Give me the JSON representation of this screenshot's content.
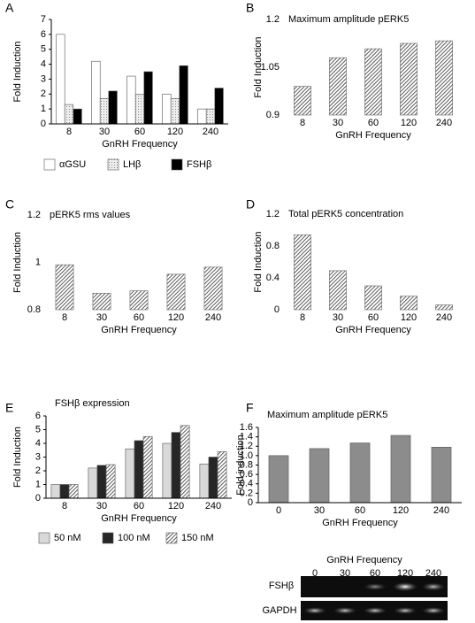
{
  "chart_data": [
    {
      "panel": "A",
      "type": "bar",
      "ylabel": "Fold Induction",
      "xlabel": "GnRH Frequency",
      "categories": [
        "8",
        "30",
        "60",
        "120",
        "240"
      ],
      "ylim": [
        0,
        7
      ],
      "yticks": [
        0,
        1,
        2,
        3,
        4,
        5,
        6,
        7
      ],
      "axes": true,
      "legend": "bottom",
      "series": [
        {
          "name": "αGSU",
          "color": "#ffffff",
          "pattern": "none",
          "values": [
            6.0,
            4.2,
            3.2,
            2.0,
            1.0
          ]
        },
        {
          "name": "LHβ",
          "color": "#d8d8d8",
          "pattern": "dots",
          "values": [
            1.3,
            1.7,
            2.0,
            1.7,
            1.0
          ]
        },
        {
          "name": "FSHβ",
          "color": "#000000",
          "pattern": "none",
          "values": [
            1.0,
            2.2,
            3.5,
            3.9,
            2.4
          ]
        }
      ]
    },
    {
      "panel": "B",
      "type": "bar",
      "title": "Maximum amplitude pERK5",
      "ylabel": "Fold Induction",
      "xlabel": "GnRH Frequency",
      "categories": [
        "8",
        "30",
        "60",
        "120",
        "240"
      ],
      "ylim": [
        0.9,
        1.2
      ],
      "yticks": [
        0.9,
        1.05,
        1.2
      ],
      "axes": false,
      "series": [
        {
          "color": "#8c8c8c",
          "pattern": "hatch",
          "values": [
            0.99,
            1.08,
            1.108,
            1.125,
            1.133
          ]
        }
      ]
    },
    {
      "panel": "C",
      "type": "bar",
      "title": "pERK5 rms values",
      "ylabel": "Fold Induction",
      "xlabel": "GnRH Frequency",
      "categories": [
        "8",
        "30",
        "60",
        "120",
        "240"
      ],
      "ylim": [
        0.8,
        1.2
      ],
      "yticks": [
        0.8,
        1,
        1.2
      ],
      "axes": false,
      "series": [
        {
          "color": "#8c8c8c",
          "pattern": "hatch",
          "values": [
            0.99,
            0.87,
            0.88,
            0.95,
            0.98
          ]
        }
      ]
    },
    {
      "panel": "D",
      "type": "bar",
      "title": "Total pERK5 concentration",
      "ylabel": "Fold Induction",
      "xlabel": "GnRH Frequency",
      "categories": [
        "8",
        "30",
        "60",
        "120",
        "240"
      ],
      "ylim": [
        0,
        1.2
      ],
      "yticks": [
        0,
        0.4,
        0.8,
        1.2
      ],
      "axes": false,
      "series": [
        {
          "color": "#8c8c8c",
          "pattern": "hatch",
          "values": [
            0.94,
            0.49,
            0.3,
            0.17,
            0.06
          ]
        }
      ]
    },
    {
      "panel": "E",
      "type": "bar",
      "title": "FSHβ expression",
      "ylabel": "Fold Induction",
      "xlabel": "GnRH Frequency",
      "categories": [
        "8",
        "30",
        "60",
        "120",
        "240"
      ],
      "ylim": [
        0,
        6
      ],
      "yticks": [
        0,
        1,
        2,
        3,
        4,
        5,
        6
      ],
      "axes": true,
      "legend": "bottom",
      "series": [
        {
          "name": "50 nM",
          "color": "#d9d9d9",
          "pattern": "none",
          "values": [
            1.0,
            2.2,
            3.6,
            4.0,
            2.5
          ]
        },
        {
          "name": "100 nM",
          "color": "#262626",
          "pattern": "none",
          "values": [
            1.0,
            2.4,
            4.2,
            4.8,
            3.0
          ]
        },
        {
          "name": "150 nM",
          "color": "#ffffff",
          "pattern": "hatch",
          "values": [
            1.0,
            2.45,
            4.5,
            5.3,
            3.4
          ]
        }
      ]
    },
    {
      "panel": "F",
      "type": "bar",
      "title": "Maximum amplitude pERK5",
      "ylabel": "Fold induction",
      "xlabel": "GnRH Frequency",
      "categories": [
        "0",
        "30",
        "60",
        "120",
        "240"
      ],
      "ylim": [
        0,
        1.6
      ],
      "yticks": [
        0,
        {
          "value": 0.2,
          "label": "0.2"
        },
        {
          "value": 0.4,
          "label": "0.4"
        },
        {
          "value": 0.6,
          "label": "0.6"
        },
        {
          "value": 0.8,
          "label": "0.8"
        },
        {
          "value": 1,
          "label": "1.0"
        },
        {
          "value": 1.2,
          "label": "1.2"
        },
        {
          "value": 1.4,
          "label": "1.4"
        },
        {
          "value": 1.6,
          "label": "1.6"
        }
      ],
      "axes": true,
      "series": [
        {
          "color": "#8c8c8c",
          "pattern": "none",
          "values": [
            1.0,
            1.15,
            1.27,
            1.43,
            1.18
          ]
        }
      ]
    }
  ],
  "gel": {
    "title": "GnRH Frequency",
    "lanes": [
      "0",
      "30",
      "60",
      "120",
      "240"
    ],
    "rows": [
      "FSHβ",
      "GAPDH"
    ]
  }
}
